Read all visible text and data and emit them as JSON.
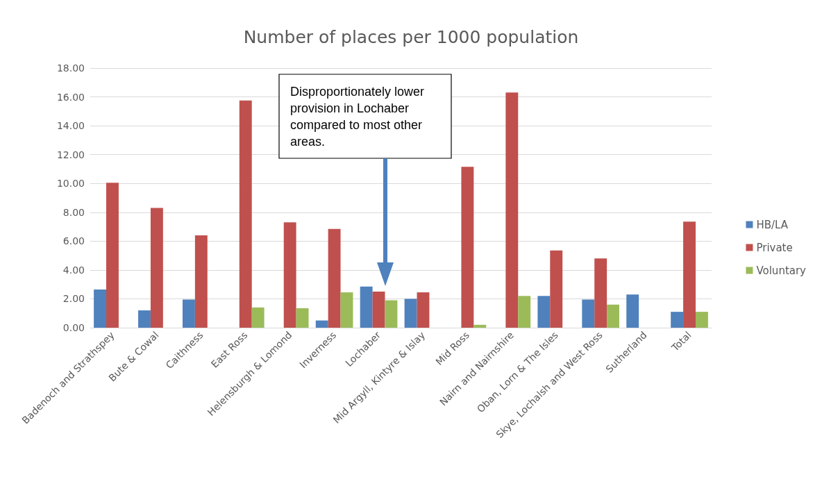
{
  "chart_data": {
    "type": "bar",
    "title": "Number of places per 1000 population",
    "categories": [
      "Badenoch and Strathspey",
      "Bute & Cowal",
      "Caithness",
      "East Ross",
      "Helensburgh & Lomond",
      "Inverness",
      "Lochaber",
      "Mid Argyll, Kintyre & Islay",
      "Mid Ross",
      "Nairn and Nairnshire",
      "Oban, Lorn & The Isles",
      "Skye, Lochalsh and West Ross",
      "Sutherland",
      "Total"
    ],
    "series": [
      {
        "name": "HB/LA",
        "color": "#4f81bd",
        "values": [
          2.65,
          1.2,
          1.95,
          null,
          null,
          0.5,
          2.85,
          2.0,
          null,
          null,
          2.2,
          1.95,
          2.3,
          1.1
        ]
      },
      {
        "name": "Private",
        "color": "#c0504d",
        "values": [
          10.05,
          8.3,
          6.4,
          15.75,
          7.3,
          6.85,
          2.5,
          2.45,
          11.15,
          16.3,
          5.35,
          4.8,
          null,
          7.35
        ]
      },
      {
        "name": "Voluntary",
        "color": "#9bbb59",
        "values": [
          null,
          null,
          null,
          1.4,
          1.35,
          2.45,
          1.9,
          null,
          0.2,
          2.2,
          null,
          1.6,
          null,
          1.1
        ]
      }
    ],
    "ylim": [
      0,
      18
    ],
    "yticks": [
      {
        "value": 0,
        "label": "0.00"
      },
      {
        "value": 2,
        "label": "2.00"
      },
      {
        "value": 4,
        "label": "4.00"
      },
      {
        "value": 6,
        "label": "6.00"
      },
      {
        "value": 8,
        "label": "8.00"
      },
      {
        "value": 10,
        "label": "10.00"
      },
      {
        "value": 12,
        "label": "12.00"
      },
      {
        "value": 14,
        "label": "14.00"
      },
      {
        "value": 16,
        "label": "16.00"
      },
      {
        "value": 18,
        "label": "18.00"
      }
    ],
    "grid": "y",
    "legend": "right",
    "annotations": [
      "Disproportionately lower provision in Lochaber compared to most other areas."
    ]
  }
}
